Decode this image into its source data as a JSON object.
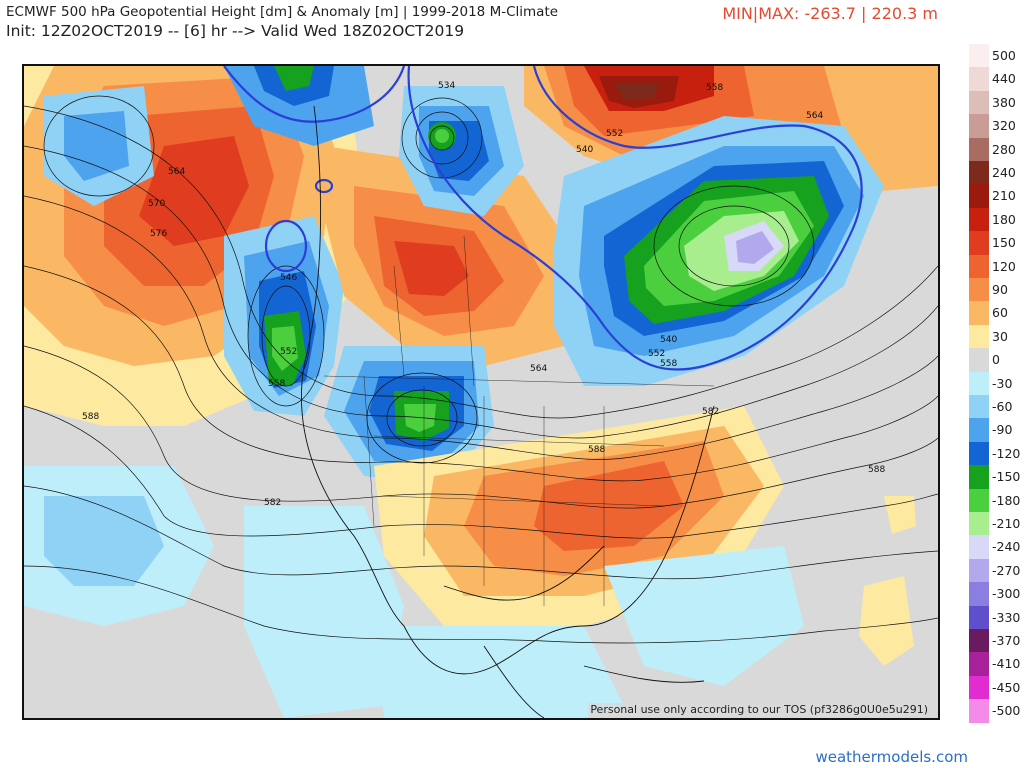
{
  "header": {
    "title_line1": "ECMWF 500 hPa Geopotential Height [dm] & Anomaly [m] | 1999-2018 M-Climate",
    "title_line2": "Init: 12Z02OCT2019 -- [6] hr --> Valid Wed 18Z02OCT2019",
    "min_max": "MIN|MAX: -263.7 | 220.3 m"
  },
  "map": {
    "disclaimer": "Personal use only according to our TOS (pf3286g0U0e5u291)",
    "contour_labels": [
      "534",
      "558",
      "564",
      "552",
      "540",
      "564",
      "570",
      "576",
      "546",
      "552",
      "558",
      "588",
      "564",
      "582",
      "588",
      "582",
      "588",
      "540",
      "552",
      "558"
    ]
  },
  "colorbar": {
    "items": [
      {
        "label": "500",
        "color": "#fbeeee"
      },
      {
        "label": "440",
        "color": "#efd9d6"
      },
      {
        "label": "380",
        "color": "#dcbdb8"
      },
      {
        "label": "320",
        "color": "#c99c95"
      },
      {
        "label": "280",
        "color": "#a86c62"
      },
      {
        "label": "240",
        "color": "#7d2a1c"
      },
      {
        "label": "210",
        "color": "#9a1a0e"
      },
      {
        "label": "180",
        "color": "#c8200f"
      },
      {
        "label": "150",
        "color": "#e03c1f"
      },
      {
        "label": "120",
        "color": "#ee6430"
      },
      {
        "label": "90",
        "color": "#f78e47"
      },
      {
        "label": "60",
        "color": "#fbb864"
      },
      {
        "label": "30",
        "color": "#fde9a0"
      },
      {
        "label": "0",
        "color": "#d9d9d9"
      },
      {
        "label": "-30",
        "color": "#bdeefa"
      },
      {
        "label": "-60",
        "color": "#8fd2f6"
      },
      {
        "label": "-90",
        "color": "#4ea3ee"
      },
      {
        "label": "-120",
        "color": "#1465d4"
      },
      {
        "label": "-150",
        "color": "#16a11f"
      },
      {
        "label": "-180",
        "color": "#4ccf3f"
      },
      {
        "label": "-210",
        "color": "#a8ee8f"
      },
      {
        "label": "-240",
        "color": "#d8d8f8"
      },
      {
        "label": "-270",
        "color": "#b2a8ee"
      },
      {
        "label": "-300",
        "color": "#8a7ee0"
      },
      {
        "label": "-330",
        "color": "#5f4fcc"
      },
      {
        "label": "-370",
        "color": "#6a1a5e"
      },
      {
        "label": "-410",
        "color": "#a8209a"
      },
      {
        "label": "-450",
        "color": "#e02cd0"
      },
      {
        "label": "-500",
        "color": "#f58be8"
      }
    ]
  },
  "footer": {
    "brand": "weathermodels.com"
  }
}
